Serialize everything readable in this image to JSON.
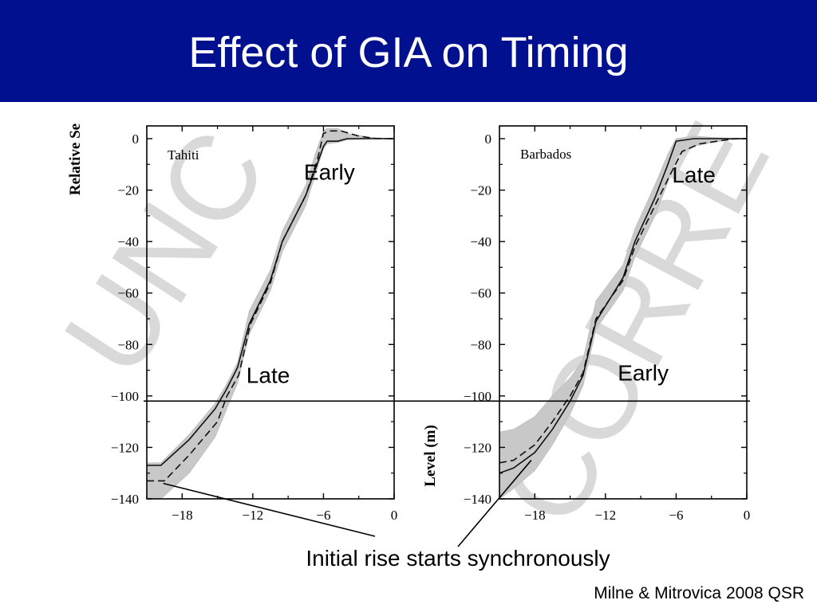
{
  "slide": {
    "title": "Effect of GIA on Timing",
    "title_bar_color": "#00108f",
    "callout": "Initial rise starts synchronously",
    "citation": "Milne & Mitrovica 2008 QSR",
    "reference_level": -102
  },
  "watermark": {
    "left_text": "UNC",
    "right_text": "CORRE"
  },
  "chart_data": [
    {
      "type": "line",
      "site": "Tahiti",
      "ylabel": "Relative Se",
      "ylim": [
        -140,
        5
      ],
      "xlim": [
        -21,
        0
      ],
      "xticks": [
        -18,
        -12,
        -6,
        0
      ],
      "xtick_labels": [
        "−18",
        "−12",
        "−6",
        "0"
      ],
      "yticks": [
        0,
        -20,
        -40,
        -60,
        -80,
        -100,
        -120,
        -140
      ],
      "ytick_labels": [
        "0",
        "−20",
        "−40",
        "−60",
        "−80",
        "−100",
        "−120",
        "−140"
      ],
      "annotations": [
        {
          "text": "Early",
          "x": -5.5,
          "y": -16
        },
        {
          "text": "Late",
          "x": -10.7,
          "y": -95
        }
      ],
      "series": [
        {
          "style": "solid",
          "x": [
            -21,
            -19.8,
            -17.4,
            -15.2,
            -14.3,
            -13.3,
            -12.3,
            -10.5,
            -9.5,
            -7.5,
            -6.7,
            -6.0,
            -5.7,
            -4.8,
            -4,
            -2,
            0
          ],
          "y": [
            -127,
            -127,
            -117,
            -105,
            -98,
            -89,
            -72,
            -55,
            -40,
            -22,
            -12,
            -3,
            -1,
            -1,
            0,
            0,
            0
          ]
        },
        {
          "style": "dashed",
          "x": [
            -21,
            -19.5,
            -17.4,
            -15.0,
            -14.2,
            -13.2,
            -12.2,
            -10.5,
            -9.5,
            -7.5,
            -6.5,
            -6.0,
            -5.5,
            -4.5,
            -3,
            -1.5,
            0
          ],
          "y": [
            -133,
            -133,
            -123,
            -110,
            -100,
            -92,
            -72,
            -56,
            -40,
            -22,
            -8,
            2,
            3,
            3,
            1,
            0,
            0
          ]
        },
        {
          "style": "band",
          "x": [
            -21,
            -19.8,
            -17.4,
            -15.2,
            -14.3,
            -13.3,
            -12.3,
            -10.5,
            -9.5,
            -7.5,
            -6.7,
            -6.0,
            -5.7,
            -4.8,
            -4,
            -2,
            0
          ],
          "y_lower": [
            -140,
            -140,
            -130,
            -116,
            -106,
            -95,
            -76,
            -59,
            -44,
            -26,
            -14,
            -4,
            -2,
            -1.5,
            -0.5,
            0,
            0
          ],
          "y_upper": [
            -126,
            -126,
            -115,
            -103,
            -96,
            -87,
            -67,
            -51,
            -36,
            -18,
            -6,
            3,
            4,
            4,
            2,
            0.5,
            0
          ]
        }
      ]
    },
    {
      "type": "line",
      "site": "Barbados",
      "ylabel": "Level (m)",
      "ylim": [
        -140,
        5
      ],
      "xlim": [
        -21,
        0
      ],
      "xticks": [
        -18,
        -12,
        -6,
        0
      ],
      "xtick_labels": [
        "−18",
        "−12",
        "−6",
        "0"
      ],
      "yticks": [
        0,
        -20,
        -40,
        -60,
        -80,
        -100,
        -120,
        -140
      ],
      "ytick_labels": [
        "0",
        "−20",
        "−40",
        "−60",
        "−80",
        "−100",
        "−120",
        "−140"
      ],
      "annotations": [
        {
          "text": "Late",
          "x": -4.5,
          "y": -17
        },
        {
          "text": "Early",
          "x": -8.8,
          "y": -94
        }
      ],
      "series": [
        {
          "style": "solid",
          "x": [
            -21,
            -19.8,
            -18,
            -16.5,
            -15.0,
            -13.9,
            -12.8,
            -10.5,
            -9.5,
            -7.8,
            -6.7,
            -6.0,
            -4.5,
            -3,
            -1.5,
            0
          ],
          "y": [
            -130,
            -128,
            -122,
            -113,
            -102,
            -92,
            -71,
            -54,
            -40,
            -23,
            -10,
            -1,
            0,
            0,
            0,
            0
          ]
        },
        {
          "style": "dashed",
          "x": [
            -21,
            -19.8,
            -18,
            -16.5,
            -15.0,
            -13.9,
            -12.8,
            -10.5,
            -9.5,
            -7.8,
            -6.5,
            -5.5,
            -4,
            -2.5,
            -1,
            0
          ],
          "y": [
            -126,
            -125,
            -119,
            -110,
            -100,
            -91,
            -70,
            -55,
            -42,
            -26,
            -14,
            -5,
            -2,
            -1,
            0,
            0
          ]
        },
        {
          "style": "band",
          "x": [
            -21,
            -19.8,
            -18,
            -16.5,
            -15.0,
            -13.9,
            -12.8,
            -10.5,
            -9.5,
            -7.8,
            -6.7,
            -6.0,
            -4.5,
            -3,
            -1.5,
            0
          ],
          "y_lower": [
            -140,
            -136,
            -129,
            -119,
            -107,
            -96,
            -74,
            -59,
            -46,
            -30,
            -17,
            -7,
            -3,
            -1.5,
            -0.5,
            0
          ],
          "y_upper": [
            -114,
            -113,
            -108,
            -100,
            -93,
            -86,
            -63,
            -49,
            -35,
            -18,
            -6,
            0,
            1,
            0.5,
            0.2,
            0
          ]
        }
      ]
    }
  ]
}
